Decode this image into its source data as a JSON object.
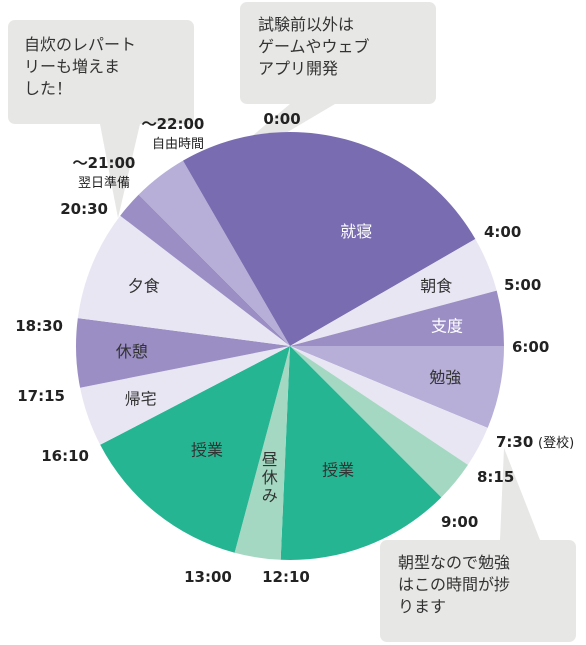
{
  "chart_data": {
    "type": "pie",
    "start": "0:00",
    "slices": [
      {
        "label": "就寝",
        "from": "0:00",
        "to": "4:00",
        "color": "#7a6cb0",
        "text_color": "#ffffff"
      },
      {
        "label": "朝食",
        "from": "4:00",
        "to": "5:00",
        "color": "#e9e6f3",
        "text_color": "#333333"
      },
      {
        "label": "支度",
        "from": "5:00",
        "to": "6:00",
        "color": "#9b8ec5",
        "text_color": "#ffffff"
      },
      {
        "label": "勉強",
        "from": "6:00",
        "to": "7:30",
        "color": "#b7afd8",
        "text_color": "#333333"
      },
      {
        "label": "",
        "from": "7:30",
        "to": "8:15",
        "color": "#e9e6f3",
        "text_color": "#333333"
      },
      {
        "label": "",
        "from": "8:15",
        "to": "9:00",
        "color": "#a5d8c2",
        "text_color": "#333333"
      },
      {
        "label": "授業",
        "from": "9:00",
        "to": "12:10",
        "color": "#26b592",
        "text_color": "#333333"
      },
      {
        "label": "昼休み",
        "from": "12:10",
        "to": "13:00",
        "color": "#a5d8c2",
        "text_color": "#333333",
        "vertical": true
      },
      {
        "label": "授業",
        "from": "13:00",
        "to": "16:10",
        "color": "#26b592",
        "text_color": "#333333"
      },
      {
        "label": "帰宅",
        "from": "16:10",
        "to": "17:15",
        "color": "#e9e6f3",
        "text_color": "#333333"
      },
      {
        "label": "休憩",
        "from": "17:15",
        "to": "18:30",
        "color": "#9b8ec5",
        "text_color": "#333333"
      },
      {
        "label": "夕食",
        "from": "18:30",
        "to": "20:30",
        "color": "#e9e6f3",
        "text_color": "#333333"
      },
      {
        "label": "",
        "from": "20:30",
        "to": "21:00",
        "color": "#9b8ec5",
        "text_color": "#333333"
      },
      {
        "label": "",
        "from": "21:00",
        "to": "22:00",
        "color": "#b7afd8",
        "text_color": "#333333"
      },
      {
        "label": "",
        "from": "22:00",
        "to": "24:00",
        "color": "#7a6cb0",
        "text_color": "#333333"
      }
    ],
    "time_labels": [
      {
        "time": "0:00",
        "text": "0:00"
      },
      {
        "time": "4:00",
        "text": "4:00"
      },
      {
        "time": "5:00",
        "text": "5:00"
      },
      {
        "time": "6:00",
        "text": "6:00"
      },
      {
        "time": "7:30",
        "text": "7:30",
        "sub": "(登校)"
      },
      {
        "time": "8:15",
        "text": "8:15"
      },
      {
        "time": "9:00",
        "text": "9:00"
      },
      {
        "time": "12:10",
        "text": "12:10"
      },
      {
        "time": "13:00",
        "text": "13:00"
      },
      {
        "time": "16:10",
        "text": "16:10"
      },
      {
        "time": "17:15",
        "text": "17:15"
      },
      {
        "time": "18:30",
        "text": "18:30"
      },
      {
        "time": "20:30",
        "text": "20:30"
      },
      {
        "time": "21:00",
        "text": "〜21:00",
        "sub": "翌日準備"
      },
      {
        "time": "22:00",
        "text": "〜22:00",
        "sub": "自由時間"
      }
    ],
    "callouts": [
      {
        "lines": [
          "試験前以外は",
          "ゲームやウェブ",
          "アプリ開発"
        ]
      },
      {
        "lines": [
          "自炊のレパート",
          "リーも増えま",
          "した！"
        ]
      },
      {
        "lines": [
          "朝型なので勉強",
          "はこの時間が捗",
          "ります"
        ]
      }
    ]
  }
}
